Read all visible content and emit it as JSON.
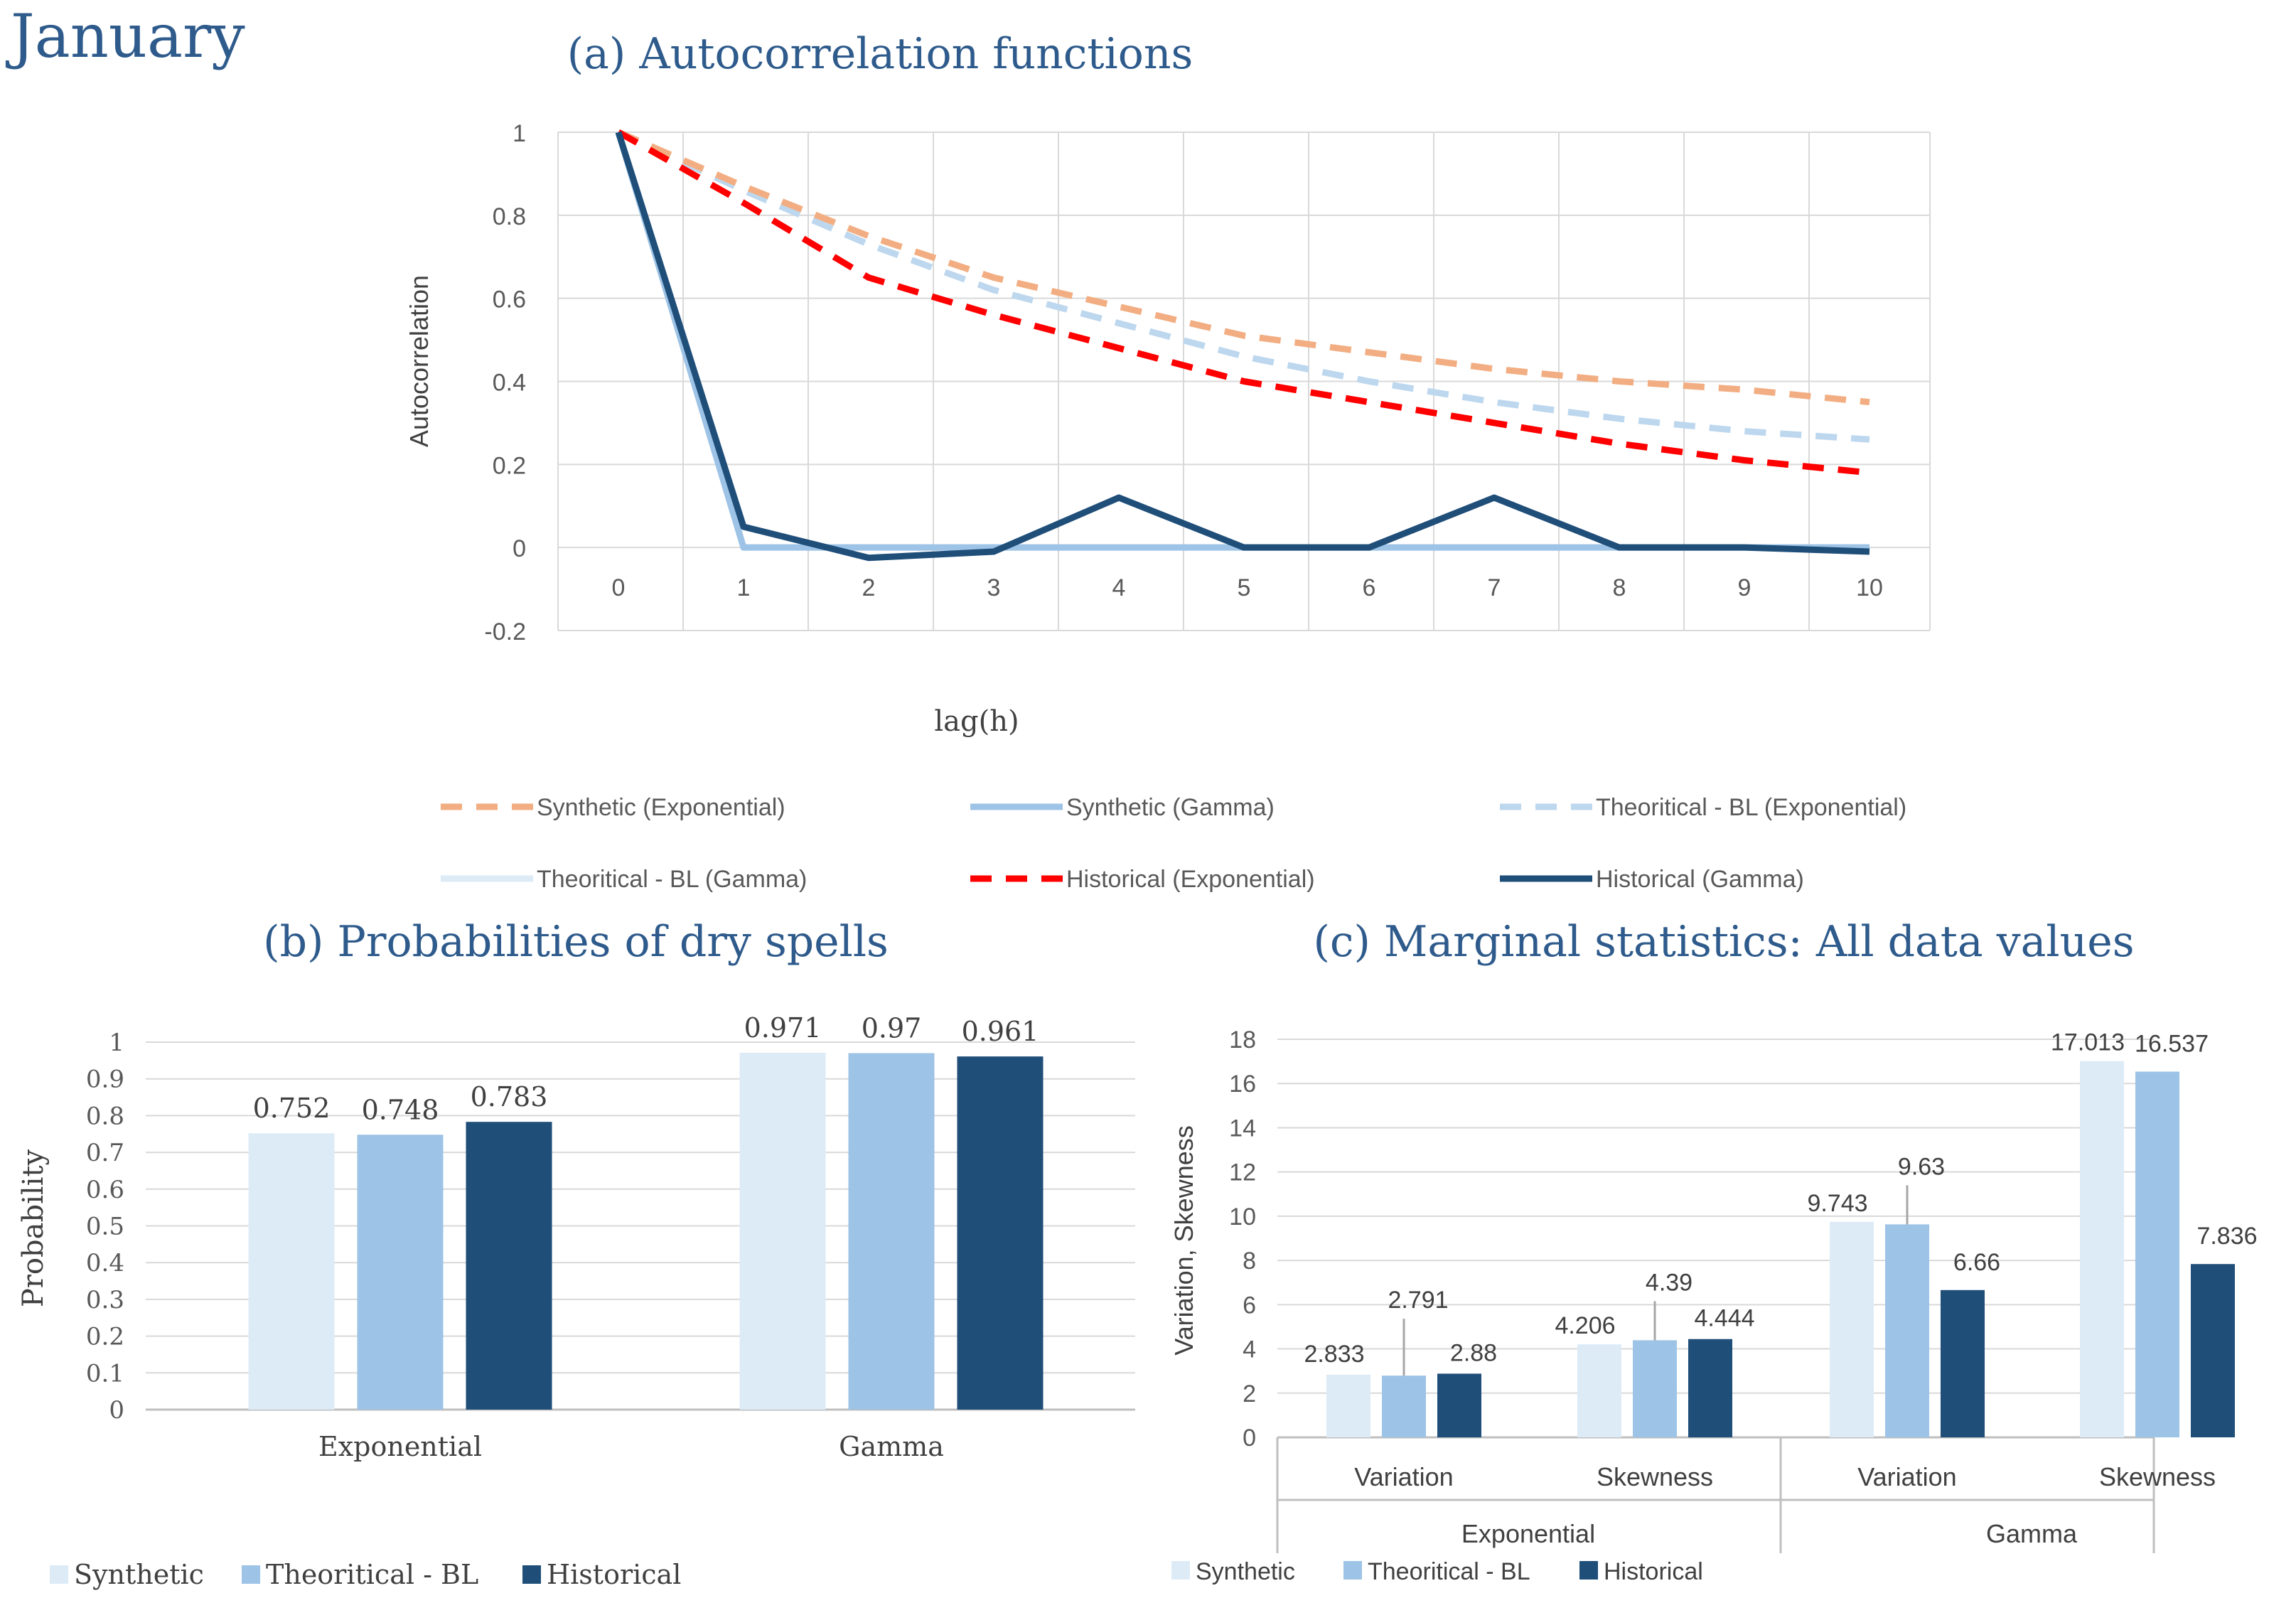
{
  "page_title": "January",
  "colors": {
    "title": "#2e5b8c",
    "syn_exp": "#f2ae82",
    "syn_gamma": "#9dc3e6",
    "theo_exp": "#bdd7ee",
    "theo_gamma": "#ddebf7",
    "hist_exp": "#ff0000",
    "hist_gamma": "#1f4e79",
    "grid": "#d9d9d9",
    "text": "#595959"
  },
  "chart_data": [
    {
      "id": "a",
      "type": "line",
      "title_tag": "(a)",
      "title": "Autocorrelation functions",
      "xlabel": "lag(h)",
      "ylabel": "Autocorrelation",
      "x": [
        0,
        1,
        2,
        3,
        4,
        5,
        6,
        7,
        8,
        9,
        10
      ],
      "ylim": [
        -0.2,
        1
      ],
      "yticks": [
        "1",
        "0.8",
        "0.6",
        "0.4",
        "0.2",
        "0",
        "-0.2"
      ],
      "ytick_values": [
        1,
        0.8,
        0.6,
        0.4,
        0.2,
        0,
        -0.2
      ],
      "series": [
        {
          "name": "Synthetic (Exponential)",
          "style": "dash",
          "color_key": "syn_exp",
          "values": [
            1,
            0.87,
            0.75,
            0.65,
            0.58,
            0.51,
            0.47,
            0.43,
            0.4,
            0.38,
            0.35
          ]
        },
        {
          "name": "Synthetic (Gamma)",
          "style": "solid",
          "color_key": "syn_gamma",
          "values": [
            1,
            0,
            0,
            0,
            0,
            0,
            0,
            0,
            0,
            0,
            0
          ]
        },
        {
          "name": "Theoritical - BL (Exponential)",
          "style": "dash",
          "color_key": "theo_exp",
          "values": [
            1,
            0.86,
            0.73,
            0.62,
            0.54,
            0.46,
            0.4,
            0.35,
            0.31,
            0.28,
            0.26
          ]
        },
        {
          "name": "Theoritical - BL (Gamma)",
          "style": "solid",
          "color_key": "theo_gamma",
          "values": [
            1,
            0,
            0,
            0,
            0,
            0,
            0,
            0,
            0,
            0,
            0
          ]
        },
        {
          "name": "Historical (Exponential)",
          "style": "dash",
          "color_key": "hist_exp",
          "values": [
            1,
            0.83,
            0.65,
            0.56,
            0.48,
            0.4,
            0.35,
            0.3,
            0.25,
            0.21,
            0.18
          ]
        },
        {
          "name": "Historical (Gamma)",
          "style": "solid",
          "color_key": "hist_gamma",
          "values": [
            1,
            0.05,
            -0.025,
            -0.01,
            0.12,
            0,
            0,
            0.12,
            0,
            0,
            -0.01
          ]
        }
      ]
    },
    {
      "id": "b",
      "type": "bar",
      "title_tag": "(b)",
      "title": "Probabilities of dry spells",
      "ylabel": "Probability",
      "ylim": [
        0,
        1
      ],
      "yticks": [
        "1",
        "0.9",
        "0.8",
        "0.7",
        "0.6",
        "0.5",
        "0.4",
        "0.3",
        "0.2",
        "0.1",
        "0"
      ],
      "ytick_values": [
        1,
        0.9,
        0.8,
        0.7,
        0.6,
        0.5,
        0.4,
        0.3,
        0.2,
        0.1,
        0
      ],
      "categories": [
        "Exponential",
        "Gamma"
      ],
      "series": [
        {
          "name": "Synthetic",
          "color_key": "theo_gamma",
          "values": [
            0.752,
            0.971
          ],
          "labels": [
            "0.752",
            "0.971"
          ]
        },
        {
          "name": "Theoritical - BL",
          "color_key": "syn_gamma",
          "values": [
            0.748,
            0.97
          ],
          "labels": [
            "0.748",
            "0.97"
          ]
        },
        {
          "name": "Historical",
          "color_key": "hist_gamma",
          "values": [
            0.783,
            0.961
          ],
          "labels": [
            "0.783",
            "0.961"
          ]
        }
      ]
    },
    {
      "id": "c",
      "type": "bar",
      "title_tag": "(c)",
      "title": "Marginal statistics: All data values",
      "ylabel": "Variation, Skewness",
      "ylim": [
        0,
        18
      ],
      "yticks": [
        "18",
        "16",
        "14",
        "12",
        "10",
        "8",
        "6",
        "4",
        "2",
        "0"
      ],
      "ytick_values": [
        18,
        16,
        14,
        12,
        10,
        8,
        6,
        4,
        2,
        0
      ],
      "categories": [
        "Variation",
        "Skewness",
        "Variation",
        "Skewness"
      ],
      "groups": [
        "Exponential",
        "Gamma"
      ],
      "series": [
        {
          "name": "Synthetic",
          "color_key": "theo_gamma",
          "values": [
            2.833,
            4.206,
            9.743,
            17.013
          ],
          "labels": [
            "2.833",
            "4.206",
            "9.743",
            "17.013"
          ]
        },
        {
          "name": "Theoritical - BL",
          "color_key": "syn_gamma",
          "values": [
            2.791,
            4.39,
            9.63,
            16.537
          ],
          "labels": [
            "2.791",
            "4.39",
            "9.63",
            "16.537"
          ]
        },
        {
          "name": "Historical",
          "color_key": "hist_gamma",
          "values": [
            2.88,
            4.444,
            6.66,
            7.836
          ],
          "labels": [
            "2.88",
            "4.444",
            "6.66",
            "7.836"
          ]
        }
      ]
    }
  ]
}
